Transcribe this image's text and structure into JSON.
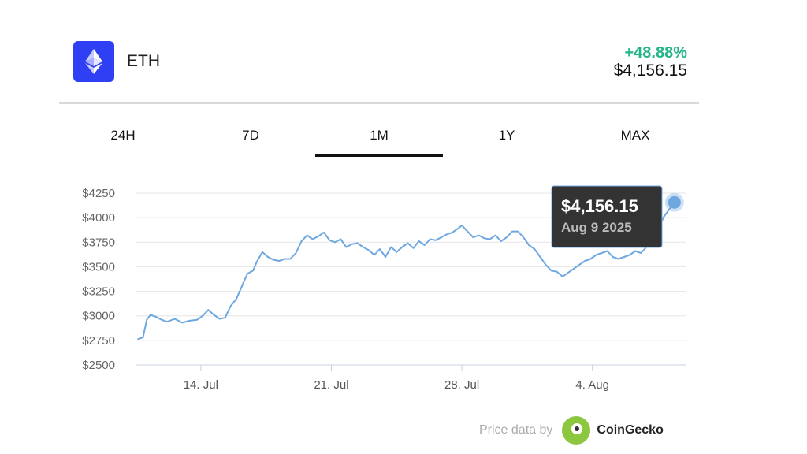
{
  "header": {
    "coin": "ETH",
    "change": "+48.88%",
    "price": "$4,156.15"
  },
  "tabs": [
    {
      "label": "24H",
      "active": false
    },
    {
      "label": "7D",
      "active": false
    },
    {
      "label": "1M",
      "active": true
    },
    {
      "label": "1Y",
      "active": false
    },
    {
      "label": "MAX",
      "active": false
    }
  ],
  "tooltip": {
    "value": "$4,156.15",
    "date": "Aug 9 2025"
  },
  "footer": {
    "text": "Price data by",
    "brand": "CoinGecko"
  },
  "colors": {
    "line": "#6fa8e0",
    "accent_green": "#20b486",
    "logo_bg": "#2f3ff3",
    "tooltip_bg": "#333333"
  },
  "chart_data": {
    "type": "line",
    "ylim": [
      2500,
      4250
    ],
    "yticks": [
      {
        "value": 4250,
        "label": "$4250"
      },
      {
        "value": 4000,
        "label": "$4000"
      },
      {
        "value": 3750,
        "label": "$3750"
      },
      {
        "value": 3500,
        "label": "$3500"
      },
      {
        "value": 3250,
        "label": "$3250"
      },
      {
        "value": 3000,
        "label": "$3000"
      },
      {
        "value": 2750,
        "label": "$2750"
      },
      {
        "value": 2500,
        "label": "$2500"
      }
    ],
    "xlim": [
      10.5,
      40.0
    ],
    "xticks": [
      {
        "value": 14,
        "label": "14. Jul"
      },
      {
        "value": 21,
        "label": "21. Jul"
      },
      {
        "value": 28,
        "label": "28. Jul"
      },
      {
        "value": 35,
        "label": "4. Aug"
      }
    ],
    "series": [
      {
        "x": [
          10.6,
          10.9,
          11.1,
          11.3,
          11.6,
          11.9,
          12.2,
          12.6,
          13.0,
          13.4,
          13.8,
          14.1,
          14.4,
          14.7,
          15.0,
          15.3,
          15.6,
          15.9,
          16.2,
          16.5,
          16.8,
          17.0,
          17.3,
          17.6,
          17.9,
          18.2,
          18.5,
          18.8,
          19.1,
          19.4,
          19.7,
          20.0,
          20.3,
          20.6,
          20.9,
          21.2,
          21.5,
          21.8,
          22.1,
          22.4,
          22.7,
          23.0,
          23.3,
          23.6,
          23.9,
          24.2,
          24.5,
          24.8,
          25.1,
          25.4,
          25.7,
          26.0,
          26.3,
          26.6,
          26.9,
          27.2,
          27.5,
          27.8,
          28.0,
          28.3,
          28.6,
          28.9,
          29.2,
          29.5,
          29.8,
          30.1,
          30.4,
          30.7,
          31.0,
          31.3,
          31.6,
          31.9,
          32.2,
          32.5,
          32.8,
          33.1,
          33.4,
          33.7,
          34.0,
          34.3,
          34.6,
          34.9,
          35.2,
          35.5,
          35.8,
          36.1,
          36.4,
          36.7,
          37.0,
          37.3,
          37.6,
          37.9,
          38.2,
          38.5,
          38.8,
          39.1,
          39.4
        ],
        "y": [
          2760,
          2780,
          2960,
          3010,
          2990,
          2960,
          2940,
          2970,
          2930,
          2950,
          2960,
          3000,
          3060,
          3010,
          2970,
          2980,
          3100,
          3170,
          3300,
          3430,
          3460,
          3550,
          3650,
          3600,
          3570,
          3560,
          3580,
          3580,
          3640,
          3760,
          3820,
          3780,
          3810,
          3850,
          3770,
          3750,
          3780,
          3700,
          3730,
          3740,
          3700,
          3670,
          3620,
          3680,
          3600,
          3700,
          3650,
          3700,
          3740,
          3690,
          3760,
          3720,
          3780,
          3770,
          3800,
          3830,
          3850,
          3890,
          3920,
          3860,
          3800,
          3820,
          3790,
          3780,
          3820,
          3760,
          3800,
          3860,
          3860,
          3800,
          3720,
          3680,
          3600,
          3520,
          3460,
          3450,
          3400,
          3440,
          3480,
          3520,
          3560,
          3580,
          3620,
          3640,
          3660,
          3600,
          3580,
          3600,
          3620,
          3660,
          3640,
          3700,
          3760,
          3850,
          4000,
          4080,
          4156
        ]
      }
    ],
    "highlight": {
      "x": 39.4,
      "y": 4156
    }
  }
}
